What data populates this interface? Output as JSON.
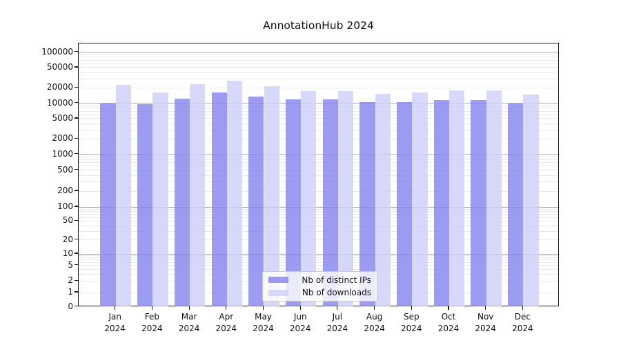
{
  "chart_data": {
    "type": "bar",
    "title": "AnnotationHub 2024",
    "categories": [
      "Jan",
      "Feb",
      "Mar",
      "Apr",
      "May",
      "Jun",
      "Jul",
      "Aug",
      "Sep",
      "Oct",
      "Nov",
      "Dec"
    ],
    "category_year": "2024",
    "series": [
      {
        "name": "Nb of distinct IPs",
        "color": "rgba(128,128,238,0.78)",
        "values": [
          10000,
          9600,
          12300,
          16400,
          13700,
          11900,
          12100,
          10400,
          10500,
          11500,
          11600,
          9900
        ]
      },
      {
        "name": "Nb of downloads",
        "color": "rgba(206,206,250,0.80)",
        "values": [
          22700,
          16400,
          23600,
          27500,
          21500,
          17300,
          17600,
          15400,
          16200,
          17700,
          18000,
          14700
        ]
      }
    ],
    "yscale": "symlog",
    "yticks": [
      0,
      1,
      2,
      5,
      10,
      20,
      50,
      100,
      200,
      500,
      1000,
      2000,
      5000,
      10000,
      20000,
      50000,
      100000
    ],
    "ylim": [
      0,
      100000
    ],
    "grid": "horizontal major+minor (log)",
    "legend_position": "lower center"
  },
  "colors": {
    "major_grid": "#adadad",
    "minor_grid": "#e9e9e9",
    "spine": "#1a1a1a",
    "legend_border": "#c9c9c9",
    "background": "#ffffff"
  }
}
